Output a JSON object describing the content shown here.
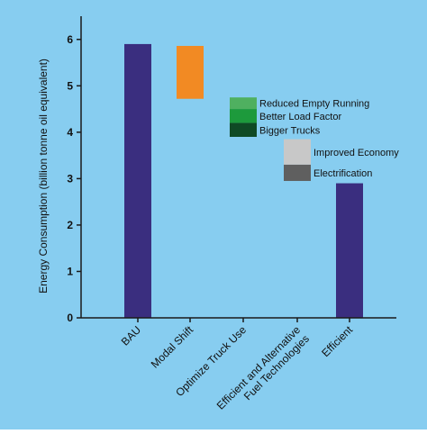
{
  "chart_data": {
    "type": "bar",
    "subtype": "waterfall",
    "ylabel": "Energy Consumption (billion tonne oil equivalent)",
    "ylim": [
      0,
      6.5
    ],
    "yticks": [
      0,
      1,
      2,
      3,
      4,
      5,
      6
    ],
    "grid": false,
    "categories": [
      "BAU",
      "Modal Shift",
      "Optimize Truck Use",
      "Efficient and Alternative Fuel Technologies",
      "Efficient"
    ],
    "category_lines": [
      [
        "BAU"
      ],
      [
        "Modal Shift"
      ],
      [
        "Optimize Truck Use"
      ],
      [
        "Efficient and Alternative",
        "Fuel Technologies"
      ],
      [
        "Efficient"
      ]
    ],
    "bars": [
      {
        "category": "BAU",
        "label": "",
        "bottom": 0,
        "top": 5.9,
        "color": "#3a2e7f"
      },
      {
        "category": "Modal Shift",
        "label": "",
        "bottom": 4.72,
        "top": 5.86,
        "color": "#f28a23"
      },
      {
        "category": "Optimize Truck Use",
        "label": "Reduced Empty Running",
        "bottom": 4.5,
        "top": 4.75,
        "color": "#4fb060"
      },
      {
        "category": "Optimize Truck Use",
        "label": "Better Load Factor",
        "bottom": 4.2,
        "top": 4.5,
        "color": "#1d9a3c"
      },
      {
        "category": "Optimize Truck Use",
        "label": "Bigger Trucks",
        "bottom": 3.9,
        "top": 4.2,
        "color": "#0f4a25"
      },
      {
        "category": "Efficient and Alternative Fuel Technologies",
        "label": "Improved Economy",
        "bottom": 3.3,
        "top": 3.85,
        "color": "#c8c8c8"
      },
      {
        "category": "Efficient and Alternative Fuel Technologies",
        "label": "Electrification",
        "bottom": 2.95,
        "top": 3.3,
        "color": "#5f5f5f"
      },
      {
        "category": "Efficient",
        "label": "",
        "bottom": 0,
        "top": 2.9,
        "color": "#3a2e7f"
      }
    ]
  },
  "colors": {
    "background": "#87cdf0",
    "axis": "#1a1a1a"
  }
}
